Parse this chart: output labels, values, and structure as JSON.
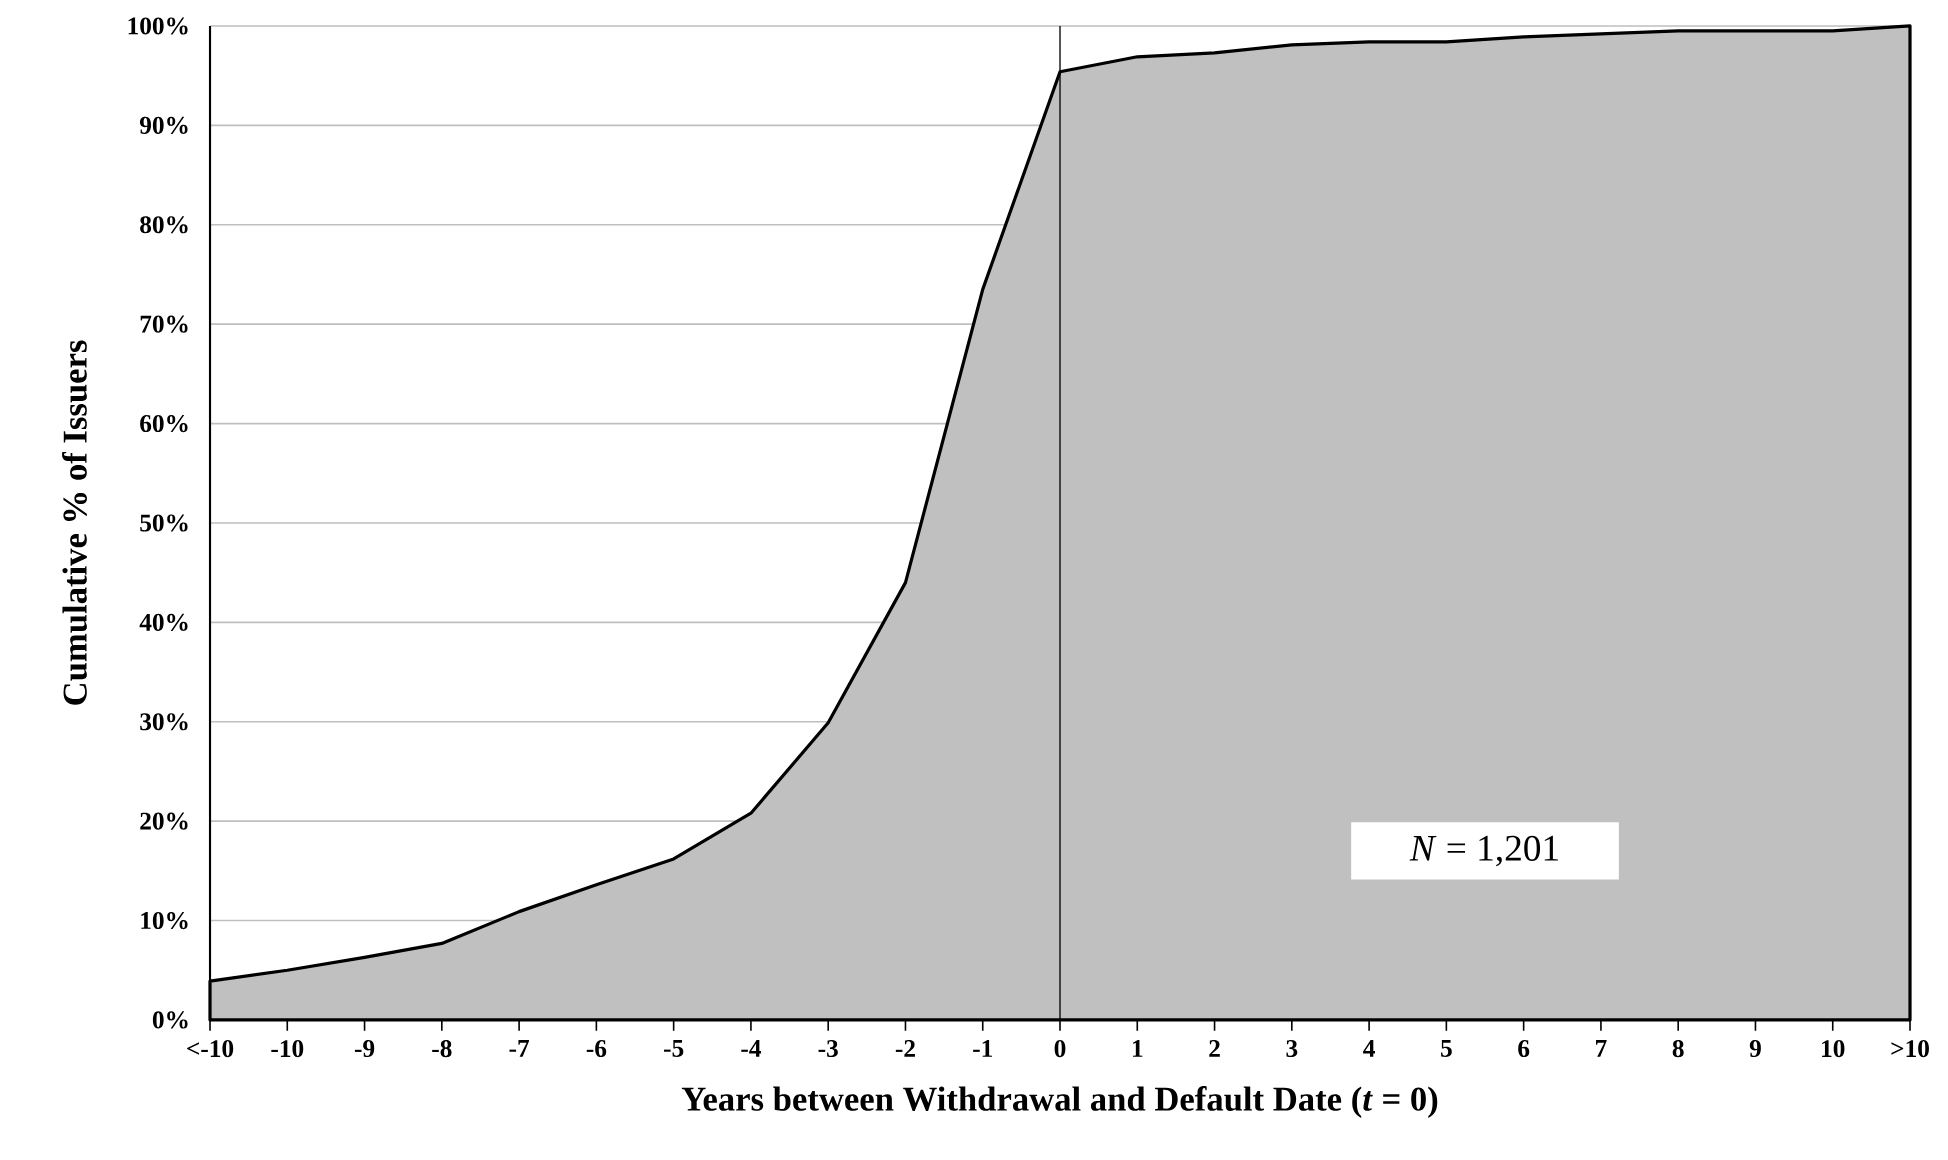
{
  "chart_data": {
    "type": "area",
    "xlabel": "Years between Withdrawal and Default Date (*t* = 0)",
    "ylabel": "Cumulative % of Issuers",
    "categories": [
      "<-10",
      "-10",
      "-9",
      "-8",
      "-7",
      "-6",
      "-5",
      "-4",
      "-3",
      "-2",
      "-1",
      "0",
      "1",
      "2",
      "3",
      "4",
      "5",
      "6",
      "7",
      "8",
      "9",
      "10",
      ">10"
    ],
    "series": [
      {
        "color": "#c0c0c0",
        "values": [
          3.9,
          5.0,
          6.3,
          7.7,
          10.9,
          13.6,
          16.2,
          20.8,
          29.9,
          44.0,
          73.5,
          95.4,
          96.9,
          97.3,
          98.1,
          98.4,
          98.4,
          98.9,
          99.2,
          99.5,
          99.5,
          99.5,
          100
        ]
      }
    ],
    "ylim": [
      0,
      100
    ],
    "yticks": [
      {
        "value": 0,
        "label": "0%"
      },
      {
        "value": 10,
        "label": "10%"
      },
      {
        "value": 20,
        "label": "20%"
      },
      {
        "value": 30,
        "label": "30%"
      },
      {
        "value": 40,
        "label": "40%"
      },
      {
        "value": 50,
        "label": "50%"
      },
      {
        "value": 60,
        "label": "60%"
      },
      {
        "value": 70,
        "label": "70%"
      },
      {
        "value": 80,
        "label": "80%"
      },
      {
        "value": 90,
        "label": "90%"
      },
      {
        "value": 100,
        "label": "100%"
      }
    ],
    "grid": "y",
    "ref_lines": [
      {
        "axis": "x",
        "value": "0",
        "color": "#000000"
      }
    ],
    "annotations": [
      "*N* = 1,201"
    ]
  }
}
